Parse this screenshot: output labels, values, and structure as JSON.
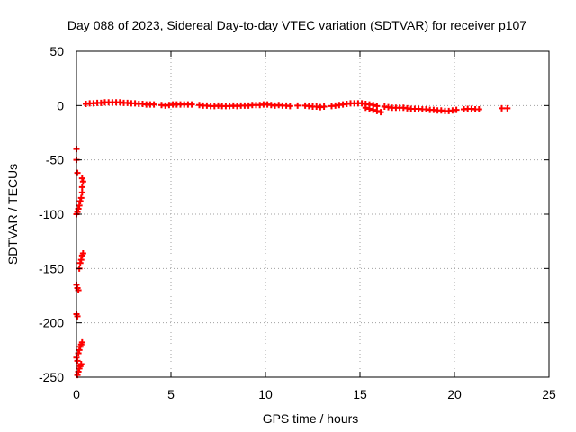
{
  "chart_data": {
    "type": "scatter",
    "title": "Day 088 of 2023, Sidereal Day-to-day VTEC variation (SDTVAR) for receiver p107",
    "xlabel": "GPS time / hours",
    "ylabel": "SDTVAR / TECUs",
    "xlim": [
      0,
      25
    ],
    "ylim": [
      -250,
      50
    ],
    "xticks": [
      0,
      5,
      10,
      15,
      20,
      25
    ],
    "yticks": [
      -250,
      -200,
      -150,
      -100,
      -50,
      0,
      50
    ],
    "grid": true,
    "marker": "+",
    "color": "#ff0000",
    "series": [
      {
        "name": "SDTVAR",
        "points": [
          [
            0.0,
            -40
          ],
          [
            0.0,
            -50
          ],
          [
            0.05,
            -62
          ],
          [
            0.0,
            -100
          ],
          [
            0.05,
            -98
          ],
          [
            0.1,
            -95
          ],
          [
            0.15,
            -92
          ],
          [
            0.2,
            -88
          ],
          [
            0.25,
            -85
          ],
          [
            0.3,
            -80
          ],
          [
            0.3,
            -75
          ],
          [
            0.35,
            -70
          ],
          [
            0.3,
            -67
          ],
          [
            0.0,
            -165
          ],
          [
            0.05,
            -168
          ],
          [
            0.1,
            -170
          ],
          [
            0.15,
            -150
          ],
          [
            0.2,
            -145
          ],
          [
            0.25,
            -142
          ],
          [
            0.3,
            -138
          ],
          [
            0.35,
            -136
          ],
          [
            0.0,
            -192
          ],
          [
            0.05,
            -194
          ],
          [
            0.0,
            -232
          ],
          [
            0.05,
            -235
          ],
          [
            0.1,
            -228
          ],
          [
            0.15,
            -225
          ],
          [
            0.2,
            -222
          ],
          [
            0.25,
            -220
          ],
          [
            0.3,
            -218
          ],
          [
            0.1,
            -245
          ],
          [
            0.15,
            -242
          ],
          [
            0.2,
            -240
          ],
          [
            0.25,
            -238
          ],
          [
            0.05,
            -248
          ],
          [
            0.5,
            1.5
          ],
          [
            0.7,
            2
          ],
          [
            0.9,
            2
          ],
          [
            1.1,
            2.5
          ],
          [
            1.3,
            2.5
          ],
          [
            1.5,
            3
          ],
          [
            1.7,
            3
          ],
          [
            1.9,
            3
          ],
          [
            2.1,
            3
          ],
          [
            2.3,
            3
          ],
          [
            2.5,
            2.5
          ],
          [
            2.7,
            2.5
          ],
          [
            2.9,
            2
          ],
          [
            3.1,
            2
          ],
          [
            3.3,
            1.5
          ],
          [
            3.5,
            1.5
          ],
          [
            3.7,
            1
          ],
          [
            3.9,
            1
          ],
          [
            4.1,
            1
          ],
          [
            4.5,
            0.5
          ],
          [
            4.7,
            0
          ],
          [
            4.9,
            0.5
          ],
          [
            5.1,
            1
          ],
          [
            5.3,
            1
          ],
          [
            5.5,
            1
          ],
          [
            5.7,
            1
          ],
          [
            5.9,
            1
          ],
          [
            6.1,
            1
          ],
          [
            6.5,
            0.5
          ],
          [
            6.7,
            0
          ],
          [
            6.9,
            0
          ],
          [
            7.1,
            -0.5
          ],
          [
            7.3,
            -0.5
          ],
          [
            7.5,
            0
          ],
          [
            7.7,
            -0.5
          ],
          [
            7.9,
            -0.5
          ],
          [
            8.1,
            -0.5
          ],
          [
            8.3,
            0
          ],
          [
            8.5,
            -0.5
          ],
          [
            8.7,
            0
          ],
          [
            8.9,
            0
          ],
          [
            9.1,
            0
          ],
          [
            9.3,
            0.5
          ],
          [
            9.5,
            0.5
          ],
          [
            9.7,
            0.5
          ],
          [
            9.9,
            1
          ],
          [
            10.1,
            1
          ],
          [
            10.3,
            0.5
          ],
          [
            10.5,
            0
          ],
          [
            10.7,
            0.5
          ],
          [
            10.9,
            0
          ],
          [
            11.1,
            0
          ],
          [
            11.3,
            -0.5
          ],
          [
            11.7,
            0
          ],
          [
            12.1,
            0
          ],
          [
            12.3,
            -0.5
          ],
          [
            12.5,
            -1
          ],
          [
            12.7,
            -1
          ],
          [
            12.9,
            -1.5
          ],
          [
            13.1,
            -1
          ],
          [
            13.5,
            -0.5
          ],
          [
            13.7,
            0
          ],
          [
            13.9,
            0.5
          ],
          [
            14.1,
            1
          ],
          [
            14.3,
            1.5
          ],
          [
            14.5,
            2
          ],
          [
            14.7,
            2
          ],
          [
            14.9,
            2
          ],
          [
            15.1,
            2
          ],
          [
            15.3,
            1.5
          ],
          [
            15.5,
            1
          ],
          [
            15.7,
            0.5
          ],
          [
            15.9,
            -0.5
          ],
          [
            15.3,
            -2
          ],
          [
            15.5,
            -3
          ],
          [
            15.7,
            -4
          ],
          [
            15.9,
            -5
          ],
          [
            16.1,
            -6
          ],
          [
            16.3,
            -1
          ],
          [
            16.5,
            -1.5
          ],
          [
            16.7,
            -2
          ],
          [
            16.9,
            -2
          ],
          [
            17.1,
            -2
          ],
          [
            17.3,
            -2
          ],
          [
            17.5,
            -2.5
          ],
          [
            17.7,
            -3
          ],
          [
            17.9,
            -3
          ],
          [
            18.1,
            -3
          ],
          [
            18.3,
            -3.5
          ],
          [
            18.5,
            -3.5
          ],
          [
            18.7,
            -4
          ],
          [
            18.9,
            -4
          ],
          [
            19.1,
            -4.5
          ],
          [
            19.3,
            -4.5
          ],
          [
            19.5,
            -5
          ],
          [
            19.7,
            -5
          ],
          [
            19.9,
            -4.5
          ],
          [
            20.1,
            -4
          ],
          [
            20.5,
            -3.5
          ],
          [
            20.7,
            -3
          ],
          [
            20.9,
            -3
          ],
          [
            21.1,
            -3.5
          ],
          [
            21.3,
            -3.5
          ],
          [
            22.5,
            -2.5
          ],
          [
            22.8,
            -2.5
          ]
        ]
      }
    ]
  }
}
